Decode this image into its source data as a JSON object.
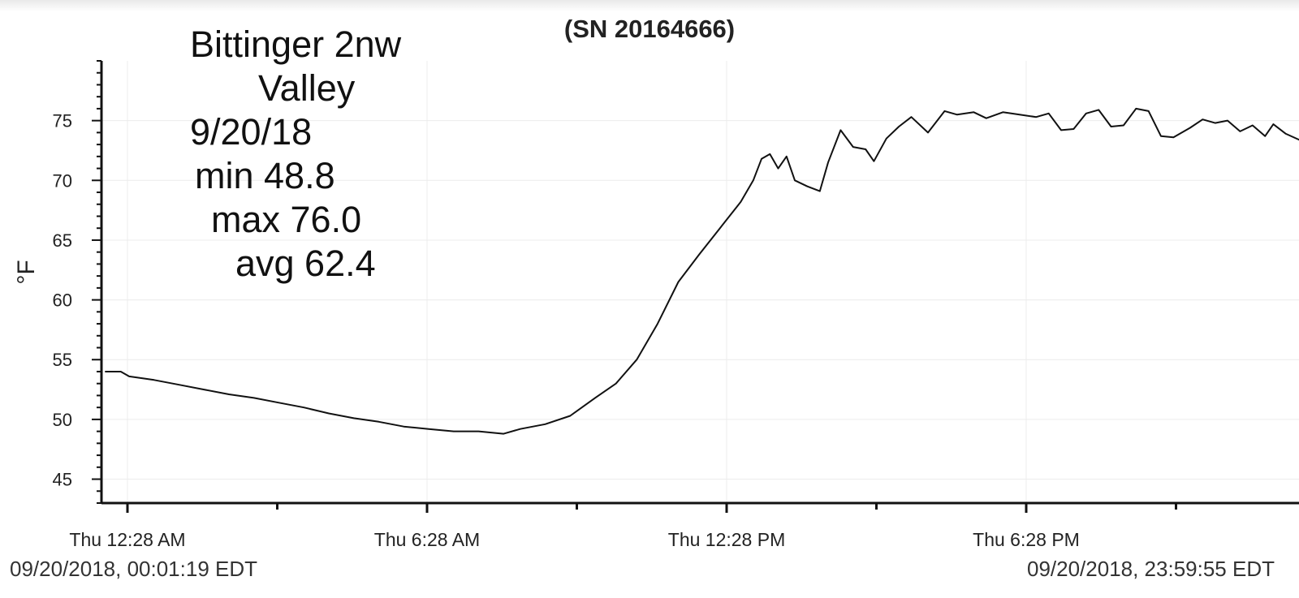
{
  "chart_title": "(SN 20164666)",
  "notes": {
    "line1": "Bittinger 2nw",
    "line2": "Valley",
    "line3": "9/20/18",
    "line4": "min 48.8",
    "line5": "max 76.0",
    "line6": "avg 62.4"
  },
  "footer": {
    "start": "09/20/2018, 00:01:19 EDT",
    "end": "09/20/2018, 23:59:55 EDT"
  },
  "chart_data": {
    "type": "line",
    "title": "(SN 20164666)",
    "xlabel": "",
    "ylabel": "°F",
    "ylim": [
      43,
      80
    ],
    "xlim": [
      "09/20/2018, 00:01:19 EDT",
      "09/20/2018, 23:59:55 EDT"
    ],
    "yticks": [
      45,
      50,
      55,
      60,
      65,
      70,
      75
    ],
    "xticks": [
      {
        "time": "00:28",
        "label": "Thu 12:28 AM"
      },
      {
        "time": "06:28",
        "label": "Thu 6:28 AM"
      },
      {
        "time": "12:28",
        "label": "Thu 12:28 PM"
      },
      {
        "time": "18:28",
        "label": "Thu 6:28 PM"
      }
    ],
    "minor_xticks": [
      "03:28",
      "09:28",
      "15:28",
      "21:28"
    ],
    "grid": true,
    "line_color": "#111111",
    "series": [
      {
        "points": [
          [
            "00:01",
            54.0
          ],
          [
            "00:20",
            54.0
          ],
          [
            "00:30",
            53.6
          ],
          [
            "01:00",
            53.3
          ],
          [
            "01:30",
            52.9
          ],
          [
            "02:00",
            52.5
          ],
          [
            "02:30",
            52.1
          ],
          [
            "03:00",
            51.8
          ],
          [
            "03:30",
            51.4
          ],
          [
            "04:00",
            51.0
          ],
          [
            "04:30",
            50.5
          ],
          [
            "05:00",
            50.1
          ],
          [
            "05:30",
            49.8
          ],
          [
            "06:00",
            49.4
          ],
          [
            "06:30",
            49.2
          ],
          [
            "07:00",
            49.0
          ],
          [
            "07:30",
            49.0
          ],
          [
            "08:00",
            48.8
          ],
          [
            "08:20",
            49.2
          ],
          [
            "08:50",
            49.6
          ],
          [
            "09:20",
            50.3
          ],
          [
            "09:50",
            51.8
          ],
          [
            "10:15",
            53.0
          ],
          [
            "10:40",
            55.0
          ],
          [
            "11:05",
            58.0
          ],
          [
            "11:30",
            61.5
          ],
          [
            "11:55",
            63.8
          ],
          [
            "12:20",
            66.0
          ],
          [
            "12:45",
            68.2
          ],
          [
            "13:00",
            70.0
          ],
          [
            "13:10",
            71.8
          ],
          [
            "13:20",
            72.2
          ],
          [
            "13:30",
            71.0
          ],
          [
            "13:40",
            72.0
          ],
          [
            "13:50",
            70.0
          ],
          [
            "14:05",
            69.5
          ],
          [
            "14:20",
            69.1
          ],
          [
            "14:30",
            71.5
          ],
          [
            "14:45",
            74.2
          ],
          [
            "15:00",
            72.8
          ],
          [
            "15:15",
            72.6
          ],
          [
            "15:25",
            71.6
          ],
          [
            "15:40",
            73.5
          ],
          [
            "15:55",
            74.5
          ],
          [
            "16:10",
            75.3
          ],
          [
            "16:30",
            74.0
          ],
          [
            "16:50",
            75.8
          ],
          [
            "17:05",
            75.5
          ],
          [
            "17:25",
            75.7
          ],
          [
            "17:40",
            75.2
          ],
          [
            "18:00",
            75.7
          ],
          [
            "18:20",
            75.5
          ],
          [
            "18:40",
            75.3
          ],
          [
            "18:55",
            75.6
          ],
          [
            "19:10",
            74.2
          ],
          [
            "19:25",
            74.3
          ],
          [
            "19:40",
            75.6
          ],
          [
            "19:55",
            75.9
          ],
          [
            "20:10",
            74.5
          ],
          [
            "20:25",
            74.6
          ],
          [
            "20:40",
            76.0
          ],
          [
            "20:55",
            75.8
          ],
          [
            "21:10",
            73.7
          ],
          [
            "21:25",
            73.6
          ],
          [
            "21:45",
            74.4
          ],
          [
            "22:00",
            75.1
          ],
          [
            "22:15",
            74.8
          ],
          [
            "22:30",
            75.0
          ],
          [
            "22:45",
            74.1
          ],
          [
            "23:00",
            74.6
          ],
          [
            "23:15",
            73.7
          ],
          [
            "23:25",
            74.7
          ],
          [
            "23:40",
            73.9
          ],
          [
            "23:59",
            73.3
          ]
        ]
      }
    ]
  }
}
